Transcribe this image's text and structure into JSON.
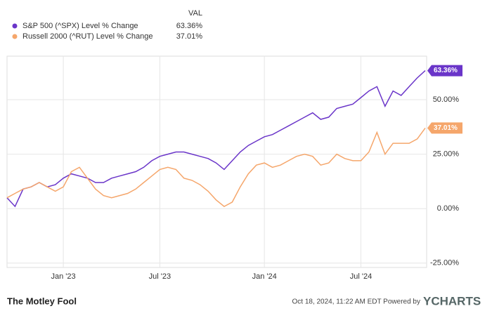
{
  "chart_data": {
    "type": "line",
    "legend_header": "VAL",
    "categories": [
      null,
      null,
      null,
      null,
      null,
      null,
      null,
      "Jan '23",
      null,
      null,
      null,
      null,
      null,
      null,
      null,
      null,
      null,
      null,
      null,
      "Jul '23",
      null,
      null,
      null,
      null,
      null,
      null,
      null,
      null,
      null,
      null,
      null,
      null,
      "Jan '24",
      null,
      null,
      null,
      null,
      null,
      null,
      null,
      null,
      null,
      null,
      null,
      "Jul '24",
      null,
      null,
      null,
      null,
      null,
      null,
      null,
      null
    ],
    "series": [
      {
        "name": "S&P 500 (^SPX) Level % Change",
        "color": "#6a35c9",
        "values": [
          5,
          1,
          9,
          10,
          12,
          10,
          11,
          14,
          16,
          15,
          14,
          12,
          12,
          14,
          15,
          16,
          17,
          19,
          22,
          24,
          25,
          26,
          26,
          25,
          24,
          23,
          21,
          18,
          22,
          26,
          29,
          31,
          33,
          34,
          36,
          38,
          40,
          42,
          44,
          41,
          42,
          46,
          47,
          48,
          51,
          54,
          56,
          47,
          54,
          52,
          56,
          60,
          63.36
        ],
        "value_labels": [
          null,
          null,
          null,
          null,
          null,
          null,
          null,
          null,
          null,
          null,
          null,
          null,
          null,
          null,
          null,
          null,
          null,
          null,
          null,
          null,
          null,
          null,
          null,
          null,
          null,
          null,
          null,
          null,
          null,
          null,
          null,
          null,
          null,
          null,
          null,
          null,
          null,
          null,
          null,
          null,
          null,
          null,
          null,
          null,
          null,
          null,
          null,
          null,
          null,
          null,
          null,
          null,
          "63.36%"
        ]
      },
      {
        "name": "Russell 2000 (^RUT) Level % Change",
        "color": "#f5a66b",
        "values": [
          5,
          7,
          9,
          10,
          12,
          10,
          8,
          10,
          17,
          19,
          14,
          9,
          6,
          5,
          6,
          7,
          9,
          12,
          15,
          18,
          19,
          18,
          14,
          13,
          11,
          8,
          4,
          1,
          3,
          10,
          16,
          20,
          21,
          19,
          20,
          22,
          24,
          25,
          24,
          20,
          21,
          25,
          23,
          22,
          22,
          26,
          35,
          25,
          30,
          30,
          30,
          32,
          37.01
        ],
        "value_labels": [
          null,
          null,
          null,
          null,
          null,
          null,
          null,
          null,
          null,
          null,
          null,
          null,
          null,
          null,
          null,
          null,
          null,
          null,
          null,
          null,
          null,
          null,
          null,
          null,
          null,
          null,
          null,
          null,
          null,
          null,
          null,
          null,
          null,
          null,
          null,
          null,
          null,
          null,
          null,
          null,
          null,
          null,
          null,
          null,
          null,
          null,
          null,
          null,
          null,
          null,
          null,
          null,
          "37.01%"
        ]
      }
    ],
    "ylim": [
      -27,
      70
    ],
    "yticks": [
      {
        "value": -25,
        "label": "-25.00%"
      },
      {
        "value": 0,
        "label": "0.00%"
      },
      {
        "value": 25,
        "label": "25.00%"
      },
      {
        "value": 50,
        "label": "50.00%"
      }
    ],
    "grid": true
  },
  "footer": {
    "logo": "The Motley Fool",
    "timestamp": "Oct 18, 2024, 11:22 AM EDT Powered by",
    "brand": "YCHARTS"
  }
}
